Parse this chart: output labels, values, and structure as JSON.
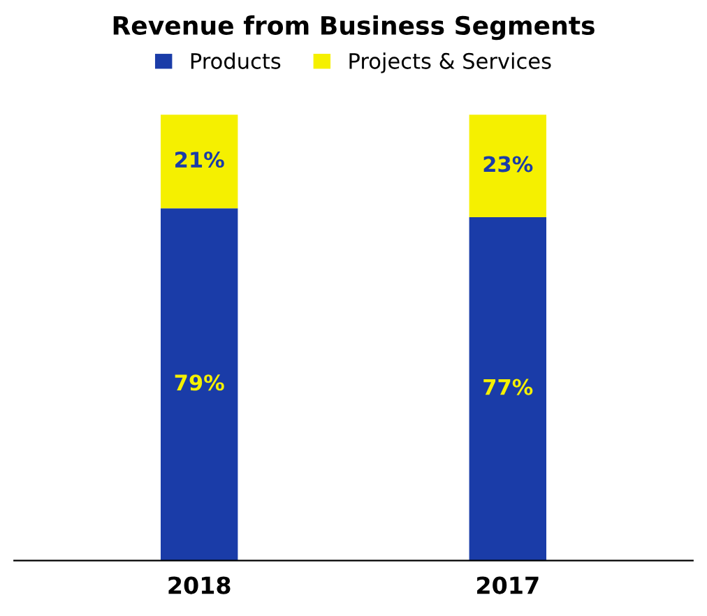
{
  "chart_data": {
    "type": "bar",
    "title": "Revenue from Business Segments",
    "categories": [
      "2018",
      "2017"
    ],
    "stacked": true,
    "legend": "top",
    "grid": false,
    "series": [
      {
        "name": "Products",
        "color": "#1a3ca8",
        "values": [
          79,
          77
        ],
        "value_labels": [
          "79%",
          "77%"
        ]
      },
      {
        "name": "Projects & Services",
        "color": "#f5f000",
        "values": [
          21,
          23
        ],
        "value_labels": [
          "21%",
          "23%"
        ]
      }
    ]
  }
}
